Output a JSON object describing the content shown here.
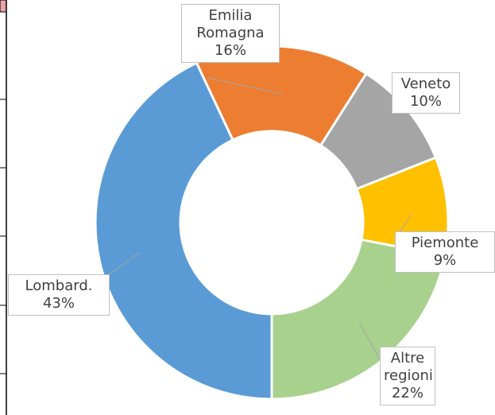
{
  "chart_data": {
    "type": "pie",
    "categories": [
      "Lombard.",
      "Emilia Romagna",
      "Veneto",
      "Piemonte",
      "Altre regioni"
    ],
    "values": [
      43,
      16,
      10,
      9,
      22
    ],
    "value_labels": [
      "43%",
      "16%",
      "10%",
      "9%",
      "22%"
    ],
    "colors": [
      "#5b9bd5",
      "#ed7d31",
      "#a5a5a5",
      "#ffc000",
      "#a9d18e"
    ],
    "donut": true
  }
}
